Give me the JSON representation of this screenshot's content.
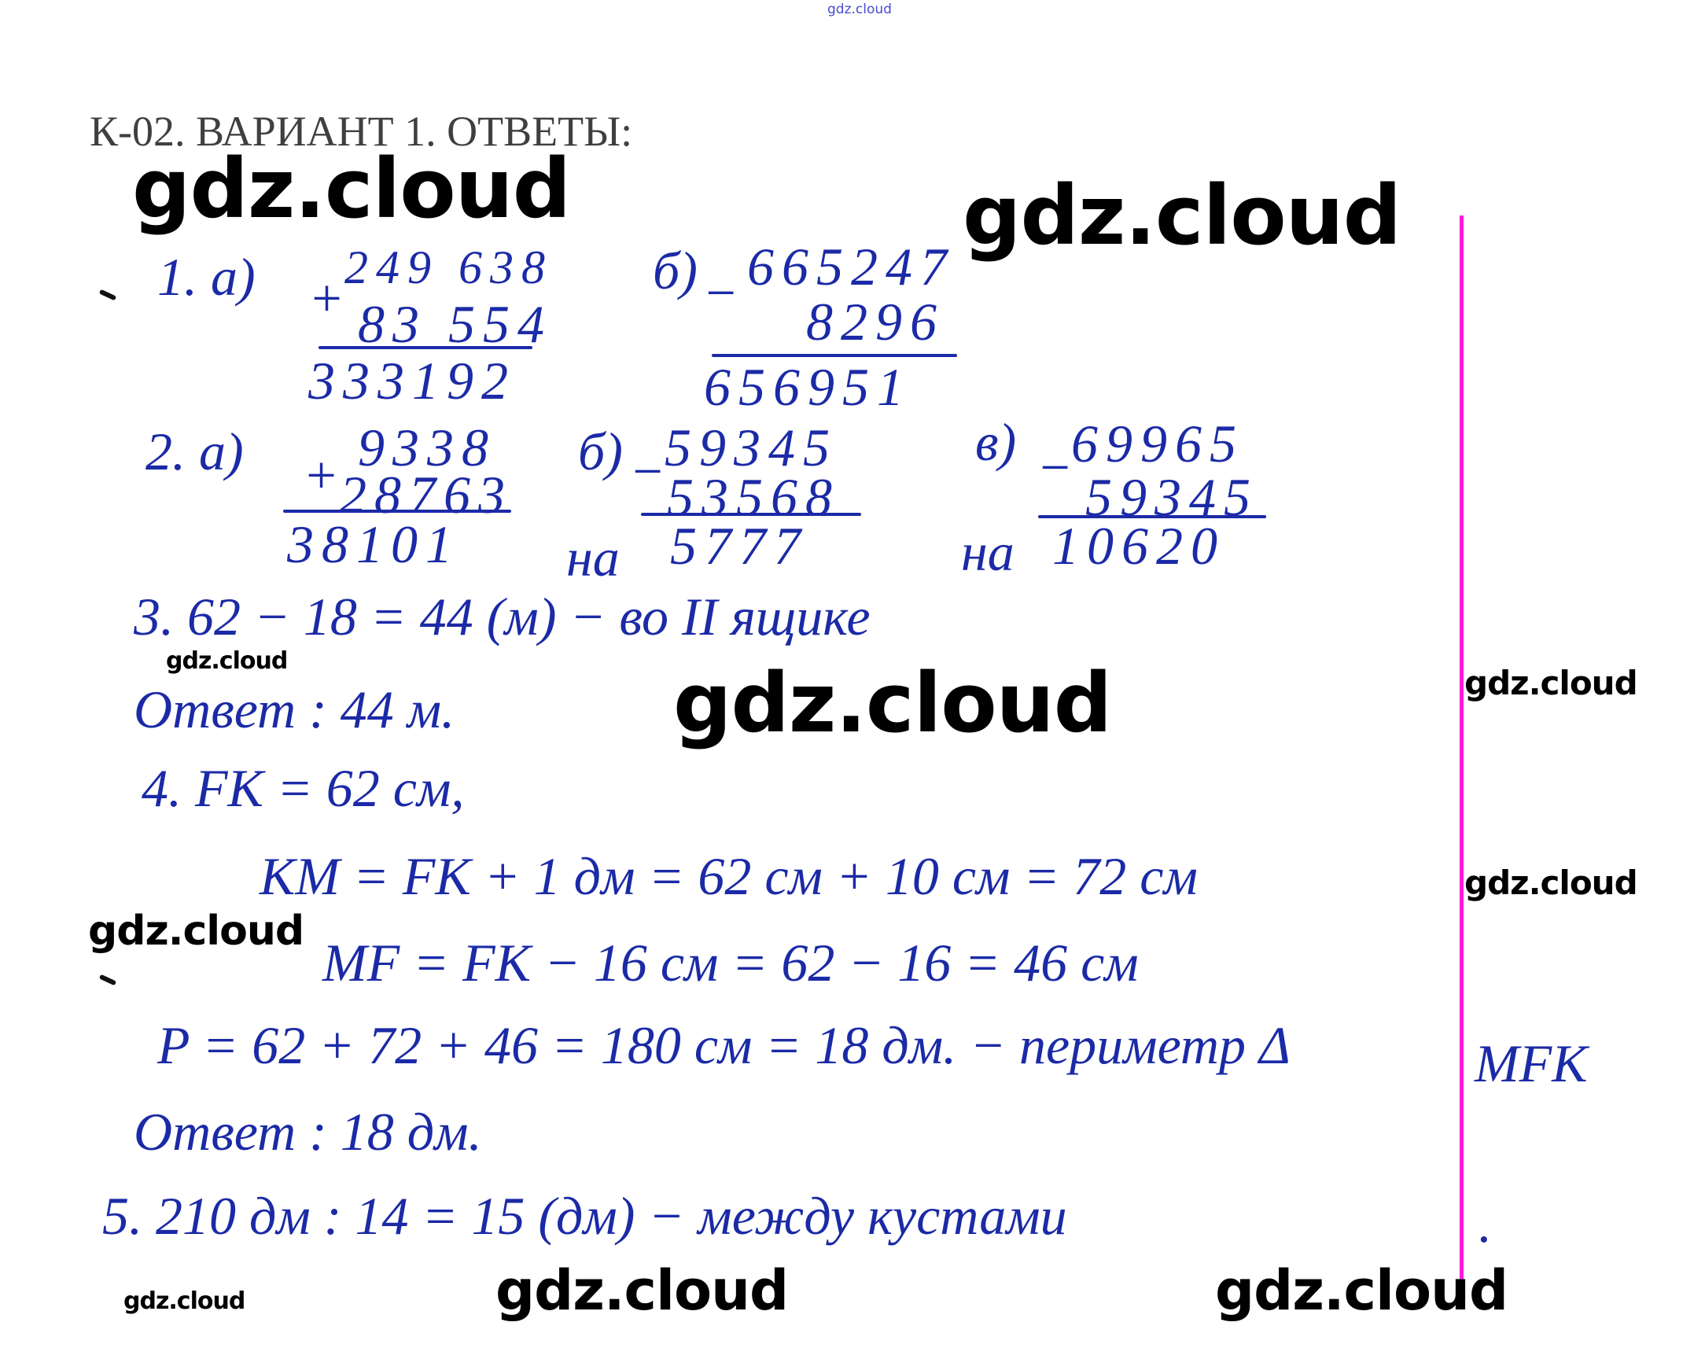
{
  "header": {
    "source_watermark": "gdz.cloud",
    "title": "К-02. ВАРИАНТ 1. ОТВЕТЫ:"
  },
  "watermark_text": "gdz.cloud",
  "colors": {
    "ink": "#1b2aa6",
    "margin_line": "#ff1ad9",
    "title": "#3f3f3f"
  },
  "task1": {
    "a": {
      "label": "1. а)",
      "operator": "+",
      "top": "249 638",
      "bottom": "83 554",
      "result": "333192"
    },
    "b": {
      "label": "б)",
      "operator": "−",
      "top": "665247",
      "bottom": "8296",
      "result": "656951"
    }
  },
  "task2": {
    "a": {
      "label": "2. а)",
      "operator": "+",
      "top": "9338",
      "bottom": "28763",
      "result": "38101"
    },
    "b": {
      "label": "б)",
      "operator": "−",
      "top": "59345",
      "bottom": "53568",
      "prefix": "на",
      "result": "5777"
    },
    "c": {
      "label": "в)",
      "operator": "−",
      "top": "69965",
      "bottom": "59345",
      "prefix": "на",
      "result": "10620"
    }
  },
  "task3": {
    "line1": "3.  62 − 18 = 44 (м) − во II ящике",
    "answer": "Ответ :  44 м."
  },
  "task4": {
    "line1": "4.   FK = 62 см,",
    "line2": "KM = FK + 1 дм = 62 см + 10 см = 72 см",
    "line3": "MF = FK − 16 см = 62 − 16 = 46 см",
    "line4": "P = 62 + 72 + 46 = 180 см = 18 дм. − периметр Δ",
    "line4_margin": "MFK",
    "answer": "Ответ :  18 дм."
  },
  "task5": {
    "line1": "5.   210 дм : 14  = 15 (дм) − между кустами",
    "line1_end": "."
  }
}
